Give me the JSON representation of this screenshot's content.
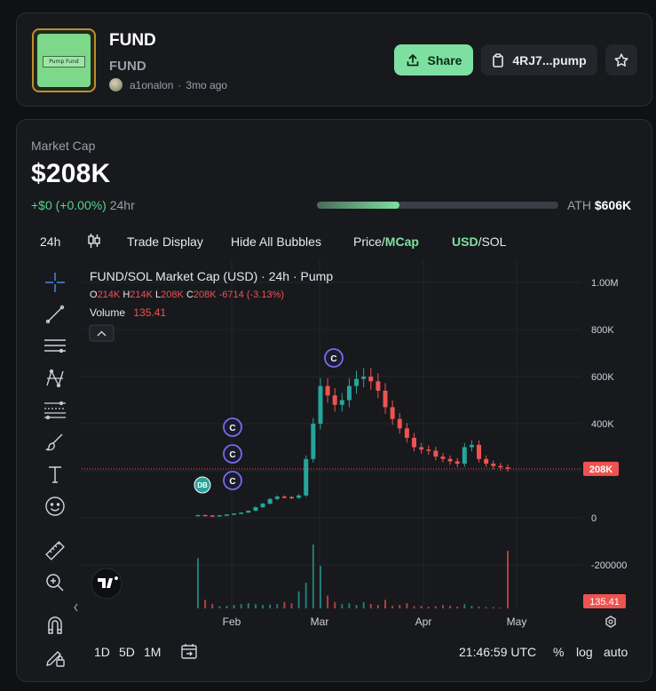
{
  "token": {
    "name": "FUND",
    "symbol": "FUND",
    "image_text": "Pump Fund",
    "creator": "a1onalon",
    "age": "3mo ago",
    "share_label": "Share",
    "contract_label": "4RJ7...pump"
  },
  "market": {
    "label": "Market Cap",
    "value": "$208K",
    "change": "+$0 (+0.00%)",
    "period": "24hr",
    "ath_label": "ATH",
    "ath_value": "$606K",
    "ath_progress": 0.343
  },
  "toolbar": {
    "interval": "24h",
    "trade_display": "Trade Display",
    "hide_bubbles": "Hide All Bubbles",
    "price_label": "Price/",
    "mcap_label": "MCap",
    "usd_label": "USD",
    "sol_label": "/SOL"
  },
  "chart": {
    "title": "FUND/SOL Market Cap (USD) · 24h · Pump",
    "ohlc": {
      "o_label": "O",
      "o": "214K",
      "h_label": "H",
      "h": "214K",
      "l_label": "L",
      "l": "208K",
      "c_label": "C",
      "c": "208K",
      "change": "-6714 (-3.13%)"
    },
    "volume_label": "Volume",
    "volume_value": "135.41",
    "price_tag": "208K",
    "volume_tag": "135.41",
    "bubbles": [
      "C",
      "C",
      "C",
      "C",
      "DB"
    ],
    "colors": {
      "up": "#26a69a",
      "down": "#ef5350",
      "bubble": "#7b68ee",
      "db": "#26a69a"
    }
  },
  "chart_data": {
    "type": "candlestick",
    "title": "FUND/SOL Market Cap (USD) · 24h · Pump",
    "x_ticks": [
      "Feb",
      "Mar",
      "Apr",
      "May"
    ],
    "y_ticks": [
      "1.00M",
      "800K",
      "600K",
      "400K",
      "200K",
      "0",
      "-200000"
    ],
    "ylim": [
      -200000,
      1000000
    ],
    "series": [
      {
        "name": "Market Cap",
        "close": [
          12000,
          10000,
          9000,
          11000,
          14000,
          18000,
          22000,
          30000,
          45000,
          60000,
          80000,
          90000,
          88000,
          85000,
          95000,
          250000,
          400000,
          560000,
          520000,
          480000,
          500000,
          560000,
          590000,
          600000,
          580000,
          540000,
          470000,
          420000,
          380000,
          340000,
          300000,
          290000,
          285000,
          260000,
          250000,
          240000,
          230000,
          300000,
          310000,
          250000,
          230000,
          220000,
          214000,
          208000
        ]
      },
      {
        "name": "Volume",
        "values": [
          118,
          20,
          10,
          5,
          6,
          8,
          10,
          12,
          10,
          8,
          9,
          10,
          15,
          12,
          40,
          60,
          150,
          100,
          30,
          15,
          10,
          12,
          8,
          15,
          10,
          8,
          20,
          6,
          8,
          12,
          5,
          6,
          4,
          5,
          8,
          6,
          4,
          10,
          6,
          4,
          3,
          3,
          2,
          135
        ]
      }
    ]
  },
  "bottom": {
    "ranges": [
      "1D",
      "5D",
      "1M"
    ],
    "time": "21:46:59 UTC",
    "percent": "%",
    "log": "log",
    "auto": "auto"
  }
}
